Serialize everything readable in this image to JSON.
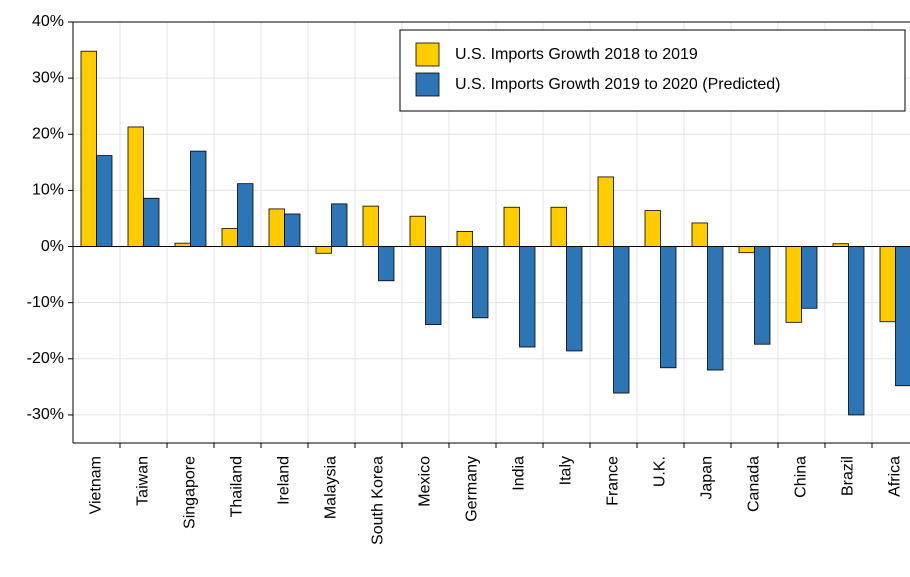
{
  "chart_data": {
    "type": "bar",
    "categories": [
      "Vietnam",
      "Taiwan",
      "Singapore",
      "Thailand",
      "Ireland",
      "Malaysia",
      "South Korea",
      "Mexico",
      "Germany",
      "India",
      "Italy",
      "France",
      "U.K.",
      "Japan",
      "Canada",
      "China",
      "Brazil",
      "Africa"
    ],
    "series": [
      {
        "name": "U.S. Imports Growth 2018 to 2019",
        "color": "#ffcc00",
        "values": [
          34.8,
          21.3,
          0.6,
          3.2,
          6.7,
          -1.2,
          7.2,
          5.4,
          2.7,
          7.0,
          7.0,
          12.4,
          6.4,
          4.2,
          -1.1,
          -13.5,
          0.5,
          -13.4
        ]
      },
      {
        "name": "U.S. Imports Growth 2019 to 2020  (Predicted)",
        "color": "#2e75b6",
        "values": [
          16.2,
          8.6,
          17.0,
          11.2,
          5.8,
          7.6,
          -6.1,
          -13.9,
          -12.7,
          -17.9,
          -18.6,
          -26.1,
          -21.6,
          -22.0,
          -17.4,
          -11.0,
          -30.0,
          -24.8
        ]
      }
    ],
    "ylim": [
      -35,
      40
    ],
    "yticks": [
      {
        "value": 40,
        "label": "40%"
      },
      {
        "value": 30,
        "label": "30%"
      },
      {
        "value": 20,
        "label": "20%"
      },
      {
        "value": 10,
        "label": "10%"
      },
      {
        "value": 0,
        "label": "0%"
      },
      {
        "value": -10,
        "label": "-10%"
      },
      {
        "value": -20,
        "label": "-20%"
      },
      {
        "value": -30,
        "label": "-30%"
      }
    ],
    "grid": true,
    "legend": "upper right"
  }
}
